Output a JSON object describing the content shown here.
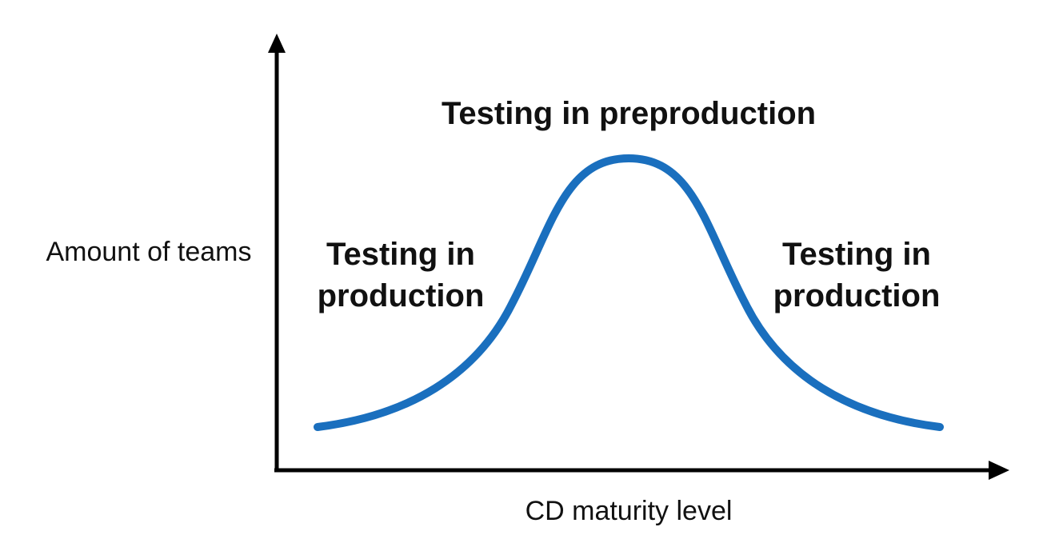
{
  "axes": {
    "y_label": "Amount of teams",
    "x_label": "CD maturity level"
  },
  "labels": {
    "peak": "Testing in preproduction",
    "left_line1": "Testing in",
    "left_line2": "production",
    "right_line1": "Testing in",
    "right_line2": "production"
  },
  "colors": {
    "curve": "#1A6FBE",
    "axis": "#000000",
    "text": "#111111"
  }
}
